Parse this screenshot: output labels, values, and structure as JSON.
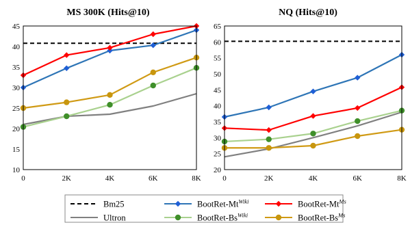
{
  "chart_data": [
    {
      "type": "line",
      "title": "MS 300K (Hits@10)",
      "x": [
        "0",
        "2K",
        "4K",
        "6K",
        "8K"
      ],
      "ylim": [
        10,
        45
      ],
      "yticks": [
        "10",
        "15",
        "20",
        "25",
        "30",
        "35",
        "40",
        "45"
      ],
      "grid": false,
      "series": [
        {
          "key": "bm25",
          "values": [
            40.8,
            40.8,
            40.8,
            40.8,
            40.8
          ]
        },
        {
          "key": "mtwiki",
          "values": [
            30.0,
            34.7,
            39.0,
            40.3,
            44.0
          ]
        },
        {
          "key": "mtms",
          "values": [
            33.0,
            37.9,
            39.7,
            43.0,
            45.0
          ]
        },
        {
          "key": "ultron",
          "values": [
            21.0,
            23.0,
            23.5,
            25.5,
            28.5
          ]
        },
        {
          "key": "bswiki",
          "values": [
            20.4,
            23.0,
            25.8,
            30.5,
            34.8
          ]
        },
        {
          "key": "bsms",
          "values": [
            25.0,
            26.4,
            28.2,
            33.7,
            37.3
          ]
        }
      ]
    },
    {
      "type": "line",
      "title": "NQ (Hits@10)",
      "x": [
        "0",
        "2K",
        "4K",
        "6K",
        "8K"
      ],
      "ylim": [
        20,
        65
      ],
      "yticks": [
        "20",
        "25",
        "30",
        "35",
        "40",
        "45",
        "50",
        "55",
        "60",
        "65"
      ],
      "grid": false,
      "series": [
        {
          "key": "bm25",
          "values": [
            60.2,
            60.2,
            60.2,
            60.2,
            60.2
          ]
        },
        {
          "key": "mtwiki",
          "values": [
            36.5,
            39.5,
            44.5,
            48.8,
            56.0
          ]
        },
        {
          "key": "mtms",
          "values": [
            33.0,
            32.4,
            36.8,
            39.3,
            45.8
          ]
        },
        {
          "key": "ultron",
          "values": [
            24.0,
            26.5,
            30.0,
            33.7,
            38.0
          ]
        },
        {
          "key": "bswiki",
          "values": [
            28.8,
            29.5,
            31.3,
            35.2,
            38.5
          ]
        },
        {
          "key": "bsms",
          "values": [
            26.8,
            26.8,
            27.5,
            30.5,
            32.5
          ]
        }
      ]
    }
  ],
  "legend": {
    "placement": "bottom",
    "items": [
      {
        "key": "bm25",
        "base": "Bm25",
        "sup": ""
      },
      {
        "key": "mtwiki",
        "base": "BootRet-Mt",
        "sup": "Wiki"
      },
      {
        "key": "mtms",
        "base": "BootRet-Mt",
        "sup": "Ms"
      },
      {
        "key": "ultron",
        "base": "Ultron",
        "sup": ""
      },
      {
        "key": "bswiki",
        "base": "BootRet-Bs",
        "sup": "Wiki"
      },
      {
        "key": "bsms",
        "base": "BootRet-Bs",
        "sup": "Ms"
      }
    ]
  },
  "styles": {
    "bm25": {
      "color": "#000000",
      "dash": true,
      "marker": "none"
    },
    "mtwiki": {
      "color": "#2e75b6",
      "dash": false,
      "marker": "diamond",
      "marker_color": "#1f5fd6"
    },
    "mtms": {
      "color": "#ff0000",
      "dash": false,
      "marker": "diamond",
      "marker_color": "#ff0000"
    },
    "ultron": {
      "color": "#808080",
      "dash": false,
      "marker": "none"
    },
    "bswiki": {
      "color": "#a9d18e",
      "dash": false,
      "marker": "circle",
      "marker_color": "#3f8f2a"
    },
    "bsms": {
      "color": "#d09a14",
      "dash": false,
      "marker": "circle",
      "marker_color": "#c8960e"
    }
  }
}
